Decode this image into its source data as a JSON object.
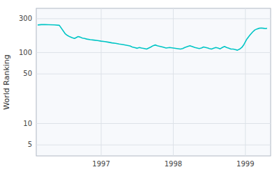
{
  "chart_data": {
    "type": "line",
    "ylabel": "World Ranking",
    "color": "#00c5c5",
    "x": [
      1996.12,
      1996.17,
      1996.22,
      1996.27,
      1996.35,
      1996.42,
      1996.5,
      1996.53,
      1996.56,
      1996.6,
      1996.63,
      1996.65,
      1996.68,
      1996.71,
      1996.74,
      1996.77,
      1996.8,
      1996.85,
      1996.9,
      1996.95,
      1997.0,
      1997.05,
      1997.1,
      1997.15,
      1997.2,
      1997.25,
      1997.3,
      1997.35,
      1997.4,
      1997.43,
      1997.46,
      1997.5,
      1997.53,
      1997.56,
      1997.6,
      1997.63,
      1997.66,
      1997.69,
      1997.72,
      1997.75,
      1997.78,
      1997.82,
      1997.86,
      1997.9,
      1997.95,
      1998.0,
      1998.05,
      1998.1,
      1998.13,
      1998.16,
      1998.2,
      1998.23,
      1998.26,
      1998.3,
      1998.33,
      1998.36,
      1998.39,
      1998.42,
      1998.45,
      1998.48,
      1998.5,
      1998.53,
      1998.56,
      1998.59,
      1998.62,
      1998.65,
      1998.68,
      1998.71,
      1998.74,
      1998.77,
      1998.8,
      1998.83,
      1998.86,
      1998.89,
      1998.92,
      1998.95,
      1998.98,
      1999.02,
      1999.06,
      1999.1,
      1999.13,
      1999.16,
      1999.19,
      1999.22,
      1999.25,
      1999.28,
      1999.3
    ],
    "values": [
      245,
      248,
      248,
      247,
      246,
      242,
      185,
      175,
      168,
      162,
      158,
      162,
      168,
      165,
      160,
      158,
      155,
      152,
      150,
      148,
      145,
      143,
      140,
      137,
      135,
      132,
      130,
      127,
      124,
      120,
      118,
      115,
      118,
      116,
      114,
      112,
      116,
      120,
      125,
      128,
      125,
      122,
      119,
      116,
      118,
      116,
      114,
      112,
      114,
      118,
      122,
      125,
      122,
      118,
      116,
      114,
      116,
      120,
      118,
      116,
      114,
      112,
      115,
      118,
      116,
      113,
      118,
      122,
      118,
      115,
      112,
      112,
      110,
      108,
      112,
      118,
      130,
      155,
      175,
      195,
      208,
      215,
      220,
      222,
      220,
      218,
      220
    ],
    "xlim": [
      1996.1,
      1999.35
    ],
    "ylim": [
      3.5,
      420
    ],
    "xticks": [
      1997,
      1998,
      1999
    ],
    "yticks": [
      5,
      10,
      50,
      100,
      300
    ],
    "log": "y",
    "grid": true
  }
}
